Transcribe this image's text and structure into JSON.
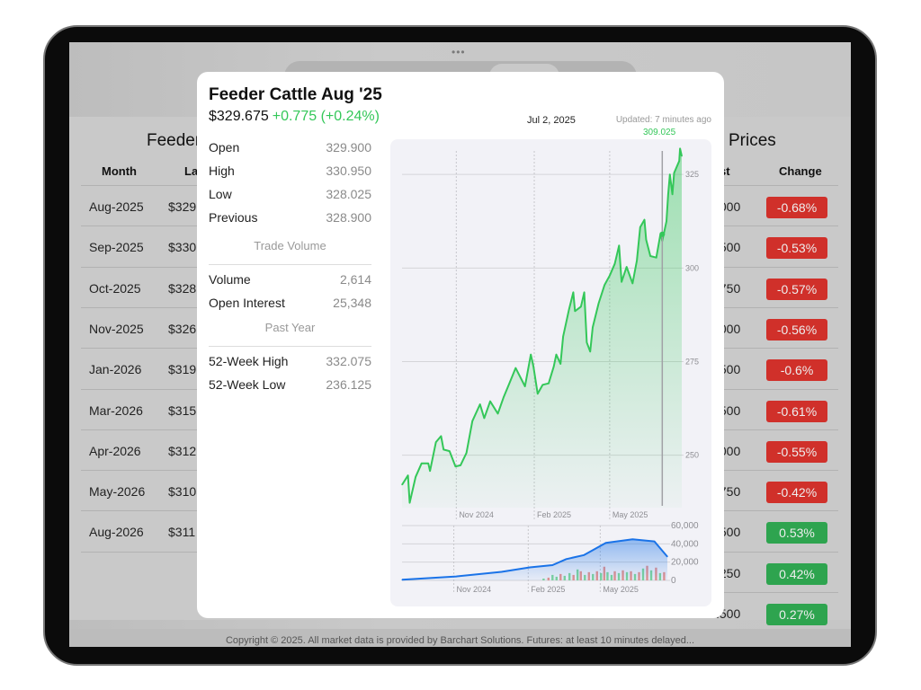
{
  "app": {
    "more_dots": "•••"
  },
  "left_panel": {
    "title": "Feeder",
    "headers": [
      "Month",
      "Las"
    ],
    "rows": [
      [
        "Aug-2025",
        "$329"
      ],
      [
        "Sep-2025",
        "$330"
      ],
      [
        "Oct-2025",
        "$328"
      ],
      [
        "Nov-2025",
        "$326"
      ],
      [
        "Jan-2026",
        "$319"
      ],
      [
        "Mar-2026",
        "$315"
      ],
      [
        "Apr-2026",
        "$312"
      ],
      [
        "May-2026",
        "$310"
      ],
      [
        "Aug-2026",
        "$311"
      ]
    ]
  },
  "right_panel": {
    "title": "Prices",
    "headers": [
      "st",
      "Change"
    ],
    "rows": [
      [
        ".000",
        "-0.68%",
        "down"
      ],
      [
        ".500",
        "-0.53%",
        "down"
      ],
      [
        ".750",
        "-0.57%",
        "down"
      ],
      [
        ".000",
        "-0.56%",
        "down"
      ],
      [
        ".500",
        "-0.6%",
        "down"
      ],
      [
        ".500",
        "-0.61%",
        "down"
      ],
      [
        ".000",
        "-0.55%",
        "down"
      ],
      [
        ".750",
        "-0.42%",
        "down"
      ],
      [
        ".500",
        "0.53%",
        "up"
      ],
      [
        ".250",
        "0.42%",
        "up"
      ],
      [
        ".500",
        "0.27%",
        "up"
      ]
    ]
  },
  "footer": "Copyright © 2025. All market data is provided by Barchart Solutions. Futures: at least 10 minutes delayed...",
  "modal": {
    "title": "Feeder Cattle Aug '25",
    "price": "$329.675",
    "change": "+0.775 (+0.24%)",
    "stats": [
      {
        "label": "Open",
        "value": "329.900"
      },
      {
        "label": "High",
        "value": "330.950"
      },
      {
        "label": "Low",
        "value": "328.025"
      },
      {
        "label": "Previous",
        "value": "328.900"
      }
    ],
    "trade_volume_heading": "Trade Volume",
    "volume_stats": [
      {
        "label": "Volume",
        "value": "2,614"
      },
      {
        "label": "Open Interest",
        "value": "25,348"
      }
    ],
    "past_year_heading": "Past Year",
    "year_stats": [
      {
        "label": "52-Week High",
        "value": "332.075"
      },
      {
        "label": "52-Week Low",
        "value": "236.125"
      }
    ],
    "cursor_date": "Jul 2, 2025",
    "updated": "Updated: 7 minutes ago",
    "cursor_value": "309.025"
  },
  "colors": {
    "up": "#34c759",
    "down": "#d0302a",
    "up_badge": "#2ea44f",
    "volume_line": "#1a73e8"
  },
  "chart_data": [
    {
      "type": "area",
      "xlim": [
        "2024-08-29",
        "2025-07-25"
      ],
      "ylim": [
        236,
        332
      ],
      "y_ticks": [
        "325",
        "300",
        "275",
        "250"
      ],
      "y_tick_values": [
        325,
        300,
        275,
        250
      ],
      "x_ticks": [
        "Nov 2024",
        "Feb 2025",
        "May 2025"
      ],
      "x_tick_dates": [
        "2024-11-01",
        "2025-02-01",
        "2025-05-01"
      ],
      "cursor": {
        "date": "2025-07-02",
        "value": 309.025
      },
      "points": [
        [
          "2024-08-29",
          242.1
        ],
        [
          "2024-09-05",
          244.6
        ],
        [
          "2024-09-07",
          237.3
        ],
        [
          "2024-09-14",
          244.2
        ],
        [
          "2024-09-21",
          247.8
        ],
        [
          "2024-09-29",
          247.8
        ],
        [
          "2024-10-01",
          245.8
        ],
        [
          "2024-10-08",
          253.5
        ],
        [
          "2024-10-14",
          255.1
        ],
        [
          "2024-10-17",
          251.5
        ],
        [
          "2024-10-24",
          251.1
        ],
        [
          "2024-10-31",
          247.0
        ],
        [
          "2024-11-06",
          247.3
        ],
        [
          "2024-11-13",
          250.6
        ],
        [
          "2024-11-20",
          259.1
        ],
        [
          "2024-11-29",
          263.6
        ],
        [
          "2024-12-04",
          259.9
        ],
        [
          "2024-12-11",
          264.4
        ],
        [
          "2024-12-20",
          261.1
        ],
        [
          "2024-12-27",
          265.6
        ],
        [
          "2025-01-02",
          268.8
        ],
        [
          "2025-01-10",
          273.3
        ],
        [
          "2025-01-21",
          268.4
        ],
        [
          "2025-01-28",
          276.9
        ],
        [
          "2025-01-31",
          273.7
        ],
        [
          "2025-02-05",
          266.4
        ],
        [
          "2025-02-11",
          268.8
        ],
        [
          "2025-02-18",
          269.2
        ],
        [
          "2025-02-24",
          273.7
        ],
        [
          "2025-02-27",
          276.9
        ],
        [
          "2025-03-04",
          274.4
        ],
        [
          "2025-03-07",
          281.7
        ],
        [
          "2025-03-14",
          289.0
        ],
        [
          "2025-03-19",
          293.5
        ],
        [
          "2025-03-21",
          288.5
        ],
        [
          "2025-03-28",
          289.7
        ],
        [
          "2025-04-01",
          293.5
        ],
        [
          "2025-04-04",
          280.1
        ],
        [
          "2025-04-08",
          277.7
        ],
        [
          "2025-04-11",
          284.2
        ],
        [
          "2025-04-18",
          290.6
        ],
        [
          "2025-04-25",
          295.5
        ],
        [
          "2025-05-01",
          298.0
        ],
        [
          "2025-05-07",
          301.1
        ],
        [
          "2025-05-12",
          306.0
        ],
        [
          "2025-05-15",
          296.3
        ],
        [
          "2025-05-21",
          300.3
        ],
        [
          "2025-05-28",
          295.9
        ],
        [
          "2025-06-02",
          302.0
        ],
        [
          "2025-06-06",
          310.9
        ],
        [
          "2025-06-11",
          312.9
        ],
        [
          "2025-06-13",
          307.6
        ],
        [
          "2025-06-18",
          303.2
        ],
        [
          "2025-06-25",
          302.8
        ],
        [
          "2025-06-30",
          309.2
        ],
        [
          "2025-07-02",
          307.2
        ],
        [
          "2025-07-07",
          312.5
        ],
        [
          "2025-07-09",
          319.7
        ],
        [
          "2025-07-11",
          325.0
        ],
        [
          "2025-07-14",
          319.7
        ],
        [
          "2025-07-16",
          325.4
        ],
        [
          "2025-07-22",
          328.6
        ],
        [
          "2025-07-23",
          331.9
        ],
        [
          "2025-07-25",
          329.9
        ]
      ]
    },
    {
      "type": "area",
      "xlim": [
        "2024-08-29",
        "2025-07-23"
      ],
      "ylim": [
        0,
        60000
      ],
      "y_ticks": [
        "60,000",
        "40,000",
        "20,000",
        "0"
      ],
      "y_tick_values": [
        60000,
        40000,
        20000,
        0
      ],
      "x_ticks": [
        "Nov 2024",
        "Feb 2025",
        "May 2025"
      ],
      "x_tick_dates": [
        "2024-11-01",
        "2025-02-01",
        "2025-05-01"
      ],
      "points": [
        [
          "2024-08-29",
          700
        ],
        [
          "2024-11-04",
          4300
        ],
        [
          "2024-12-30",
          9300
        ],
        [
          "2025-02-03",
          14300
        ],
        [
          "2025-03-03",
          16700
        ],
        [
          "2025-03-20",
          23300
        ],
        [
          "2025-04-11",
          27700
        ],
        [
          "2025-05-08",
          41000
        ],
        [
          "2025-06-10",
          45000
        ],
        [
          "2025-07-07",
          42700
        ],
        [
          "2025-07-23",
          26000
        ]
      ],
      "bars": [
        [
          "2025-02-20",
          2000,
          "up"
        ],
        [
          "2025-02-26",
          3000,
          "down"
        ],
        [
          "2025-03-03",
          6000,
          "up"
        ],
        [
          "2025-03-08",
          4000,
          "up"
        ],
        [
          "2025-03-13",
          7000,
          "down"
        ],
        [
          "2025-03-18",
          5000,
          "up"
        ],
        [
          "2025-03-24",
          8000,
          "up"
        ],
        [
          "2025-03-29",
          6000,
          "down"
        ],
        [
          "2025-04-03",
          12000,
          "up"
        ],
        [
          "2025-04-07",
          10000,
          "down"
        ],
        [
          "2025-04-12",
          6000,
          "up"
        ],
        [
          "2025-04-17",
          9000,
          "down"
        ],
        [
          "2025-04-22",
          7000,
          "up"
        ],
        [
          "2025-04-27",
          10000,
          "down"
        ],
        [
          "2025-05-02",
          8000,
          "up"
        ],
        [
          "2025-05-06",
          15000,
          "down"
        ],
        [
          "2025-05-10",
          9000,
          "up"
        ],
        [
          "2025-05-15",
          6000,
          "up"
        ],
        [
          "2025-05-19",
          10000,
          "down"
        ],
        [
          "2025-05-24",
          8000,
          "up"
        ],
        [
          "2025-05-29",
          11000,
          "down"
        ],
        [
          "2025-06-03",
          9000,
          "up"
        ],
        [
          "2025-06-08",
          10000,
          "down"
        ],
        [
          "2025-06-13",
          7000,
          "up"
        ],
        [
          "2025-06-18",
          9000,
          "down"
        ],
        [
          "2025-06-23",
          13000,
          "up"
        ],
        [
          "2025-06-28",
          16000,
          "down"
        ],
        [
          "2025-07-03",
          11000,
          "up"
        ],
        [
          "2025-07-09",
          14000,
          "down"
        ],
        [
          "2025-07-14",
          8000,
          "up"
        ],
        [
          "2025-07-19",
          9000,
          "down"
        ]
      ]
    }
  ]
}
